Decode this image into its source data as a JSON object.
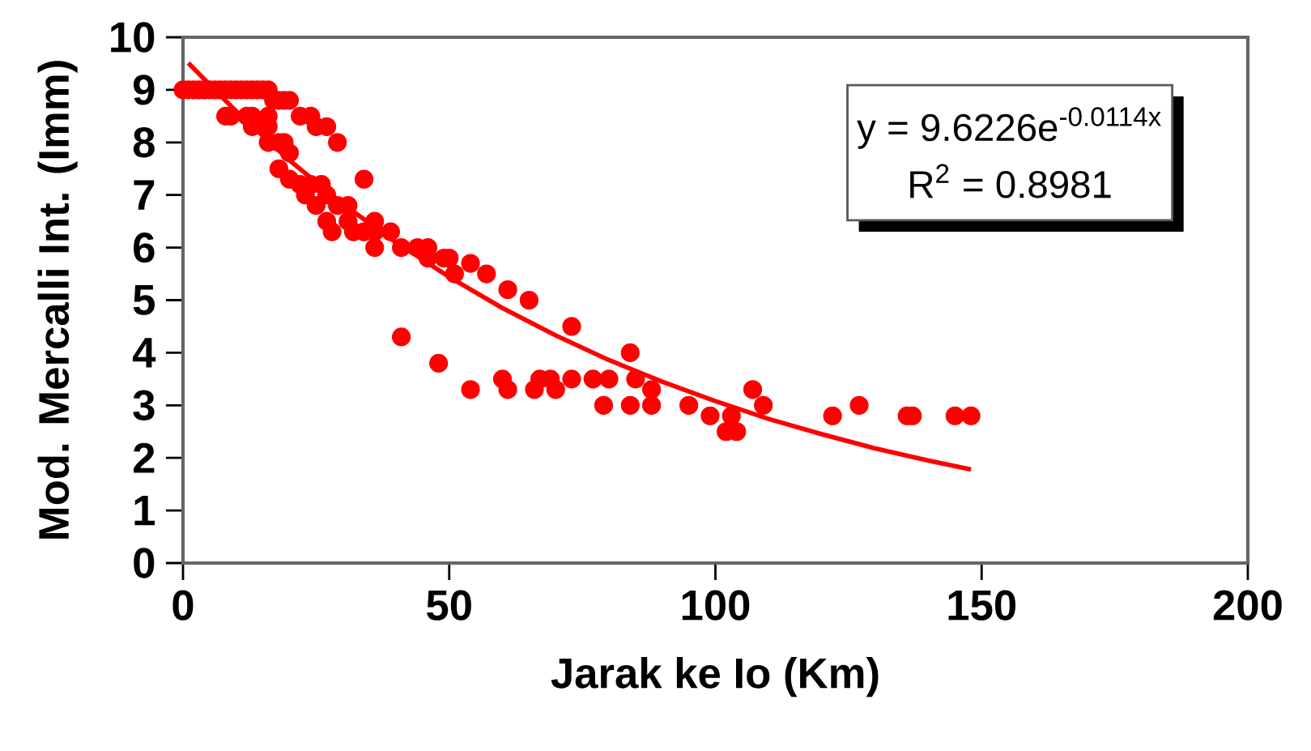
{
  "chart_data": {
    "type": "scatter",
    "xlabel": "Jarak ke Io (Km)",
    "ylabel": "Mod. Mercalli Int. (Imm)",
    "xlim": [
      0,
      200
    ],
    "ylim": [
      0,
      10
    ],
    "xticks": [
      0,
      50,
      100,
      150,
      200
    ],
    "yticks": [
      0,
      1,
      2,
      3,
      4,
      5,
      6,
      7,
      8,
      9,
      10
    ],
    "grid": false,
    "annotations": [
      "y = 9.6226e$^{-0.0114x}$",
      "R$^{2}$ = 0.8981"
    ],
    "series": [
      {
        "type": "scatter",
        "marker": "circle",
        "color": "#ff0000",
        "x": [
          0,
          1,
          2,
          3,
          4,
          5,
          6,
          7,
          8,
          9,
          10,
          11,
          12,
          13,
          14,
          15,
          16,
          17,
          18,
          19,
          20,
          8,
          9,
          12,
          13,
          16,
          22,
          24,
          13,
          16,
          25,
          27,
          16,
          18,
          19,
          29,
          20,
          18,
          20,
          34,
          22,
          24,
          26,
          23,
          27,
          25,
          29,
          31,
          27,
          31,
          36,
          28,
          32,
          34,
          36,
          39,
          36,
          41,
          44,
          46,
          46,
          49,
          50,
          54,
          51,
          57,
          61,
          65,
          73,
          41,
          84,
          48,
          60,
          67,
          69,
          73,
          77,
          80,
          85,
          54,
          61,
          66,
          70,
          88,
          107,
          79,
          84,
          88,
          95,
          109,
          127,
          99,
          103,
          122,
          136,
          137,
          145,
          148,
          102,
          104
        ],
        "values": [
          9,
          9,
          9,
          9,
          9,
          9,
          9,
          9,
          9,
          9,
          9,
          9,
          9,
          9,
          9,
          9,
          9,
          8.8,
          8.8,
          8.8,
          8.8,
          8.5,
          8.5,
          8.5,
          8.5,
          8.5,
          8.5,
          8.5,
          8.3,
          8.3,
          8.3,
          8.3,
          8,
          8,
          8,
          8,
          7.8,
          7.5,
          7.3,
          7.3,
          7.2,
          7.2,
          7.2,
          7,
          7,
          6.8,
          6.8,
          6.8,
          6.5,
          6.5,
          6.5,
          6.3,
          6.3,
          6.3,
          6.3,
          6.3,
          6,
          6,
          6,
          6,
          5.8,
          5.8,
          5.8,
          5.7,
          5.5,
          5.5,
          5.2,
          5,
          4.5,
          4.3,
          4,
          3.8,
          3.5,
          3.5,
          3.5,
          3.5,
          3.5,
          3.5,
          3.5,
          3.3,
          3.3,
          3.3,
          3.3,
          3.3,
          3.3,
          3,
          3,
          3,
          3,
          3,
          3,
          2.8,
          2.8,
          2.8,
          2.8,
          2.8,
          2.8,
          2.8,
          2.5,
          2.5
        ]
      },
      {
        "type": "line",
        "color": "#ff0000",
        "marker": "none",
        "x": [
          1,
          10,
          20,
          30,
          40,
          50,
          60,
          70,
          80,
          90,
          100,
          110,
          120,
          130,
          140,
          148
        ],
        "values": [
          9.51,
          8.59,
          7.66,
          6.83,
          6.1,
          5.44,
          4.85,
          4.33,
          3.86,
          3.45,
          3.08,
          2.74,
          2.45,
          2.18,
          1.95,
          1.78
        ]
      }
    ]
  }
}
